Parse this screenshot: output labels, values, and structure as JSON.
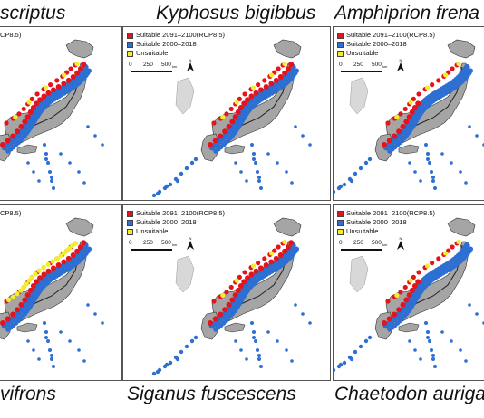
{
  "titles": {
    "top_left": "scriptus",
    "top_center": "Kyphosus bigibbus",
    "top_right": "Amphiprion frena",
    "bottom_left": "vifrons",
    "bottom_center": "Siganus fuscescens",
    "bottom_right": "Chaetodon auriga"
  },
  "legend": {
    "future_label": "Suitable 2091–2100(RCP8.5)",
    "current_label": "Suitable 2000–2018",
    "unsuitable_label": "Unsuitable",
    "partial_label": "CP8.5)"
  },
  "scale": {
    "t0": "0",
    "t250": "250",
    "t500": "500",
    "unit": "km"
  },
  "north_label": "N",
  "colors": {
    "future": "#e3141b",
    "current": "#2d6fd2",
    "unsuitable": "#f2ee2a",
    "land": "#a5a5a5",
    "pref_line": "#222222"
  }
}
